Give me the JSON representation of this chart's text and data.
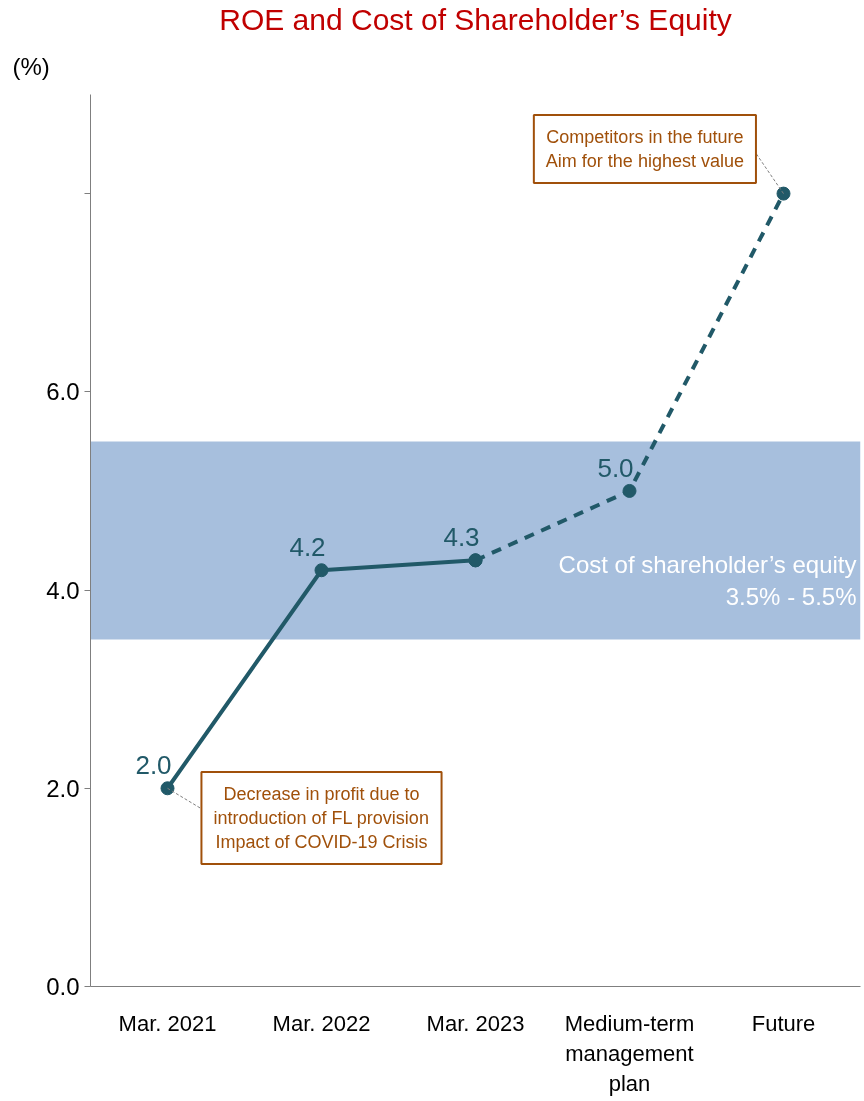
{
  "chart_data": {
    "type": "line",
    "title": "ROE and Cost of Shareholder’s Equity",
    "ylabel": "(%)",
    "categories": [
      "Mar. 2021",
      "Mar. 2022",
      "Mar. 2023",
      "Medium-term management plan",
      "Future"
    ],
    "series": [
      {
        "color": "#215968",
        "values": [
          2.0,
          4.2,
          4.3,
          null,
          null
        ],
        "line_style": "solid",
        "value_labels": [
          "2.0",
          "4.2",
          "4.3",
          null,
          null
        ]
      },
      {
        "color": "#215968",
        "values": [
          null,
          null,
          4.3,
          5.0,
          8.0
        ],
        "line_style": "dashed",
        "value_labels": [
          null,
          null,
          null,
          "5.0",
          null
        ]
      }
    ],
    "marker": "circle",
    "ylim": [
      0,
      9
    ],
    "yticks": [
      {
        "value": 0,
        "label": "0.0"
      },
      {
        "value": 2,
        "label": "2.0"
      },
      {
        "value": 4,
        "label": "4.0"
      },
      {
        "value": 6,
        "label": "6.0"
      },
      {
        "value": 8,
        "label": null
      }
    ],
    "bands": [
      {
        "axis": "y",
        "from": 3.5,
        "to": 5.5,
        "label": "Cost of shareholder’s equity\n3.5% - 5.5%",
        "color": "#a7bfdd"
      }
    ],
    "annotations": [
      {
        "text": "Competitors in the future\nAim for the highest value",
        "x": "Future",
        "y": 8.0
      },
      {
        "text": "Decrease in profit due to\nintroduction of FL provision\nImpact of COVID-19 Crisis",
        "x": "Mar. 2021",
        "y": 2.0
      }
    ],
    "grid": false
  }
}
